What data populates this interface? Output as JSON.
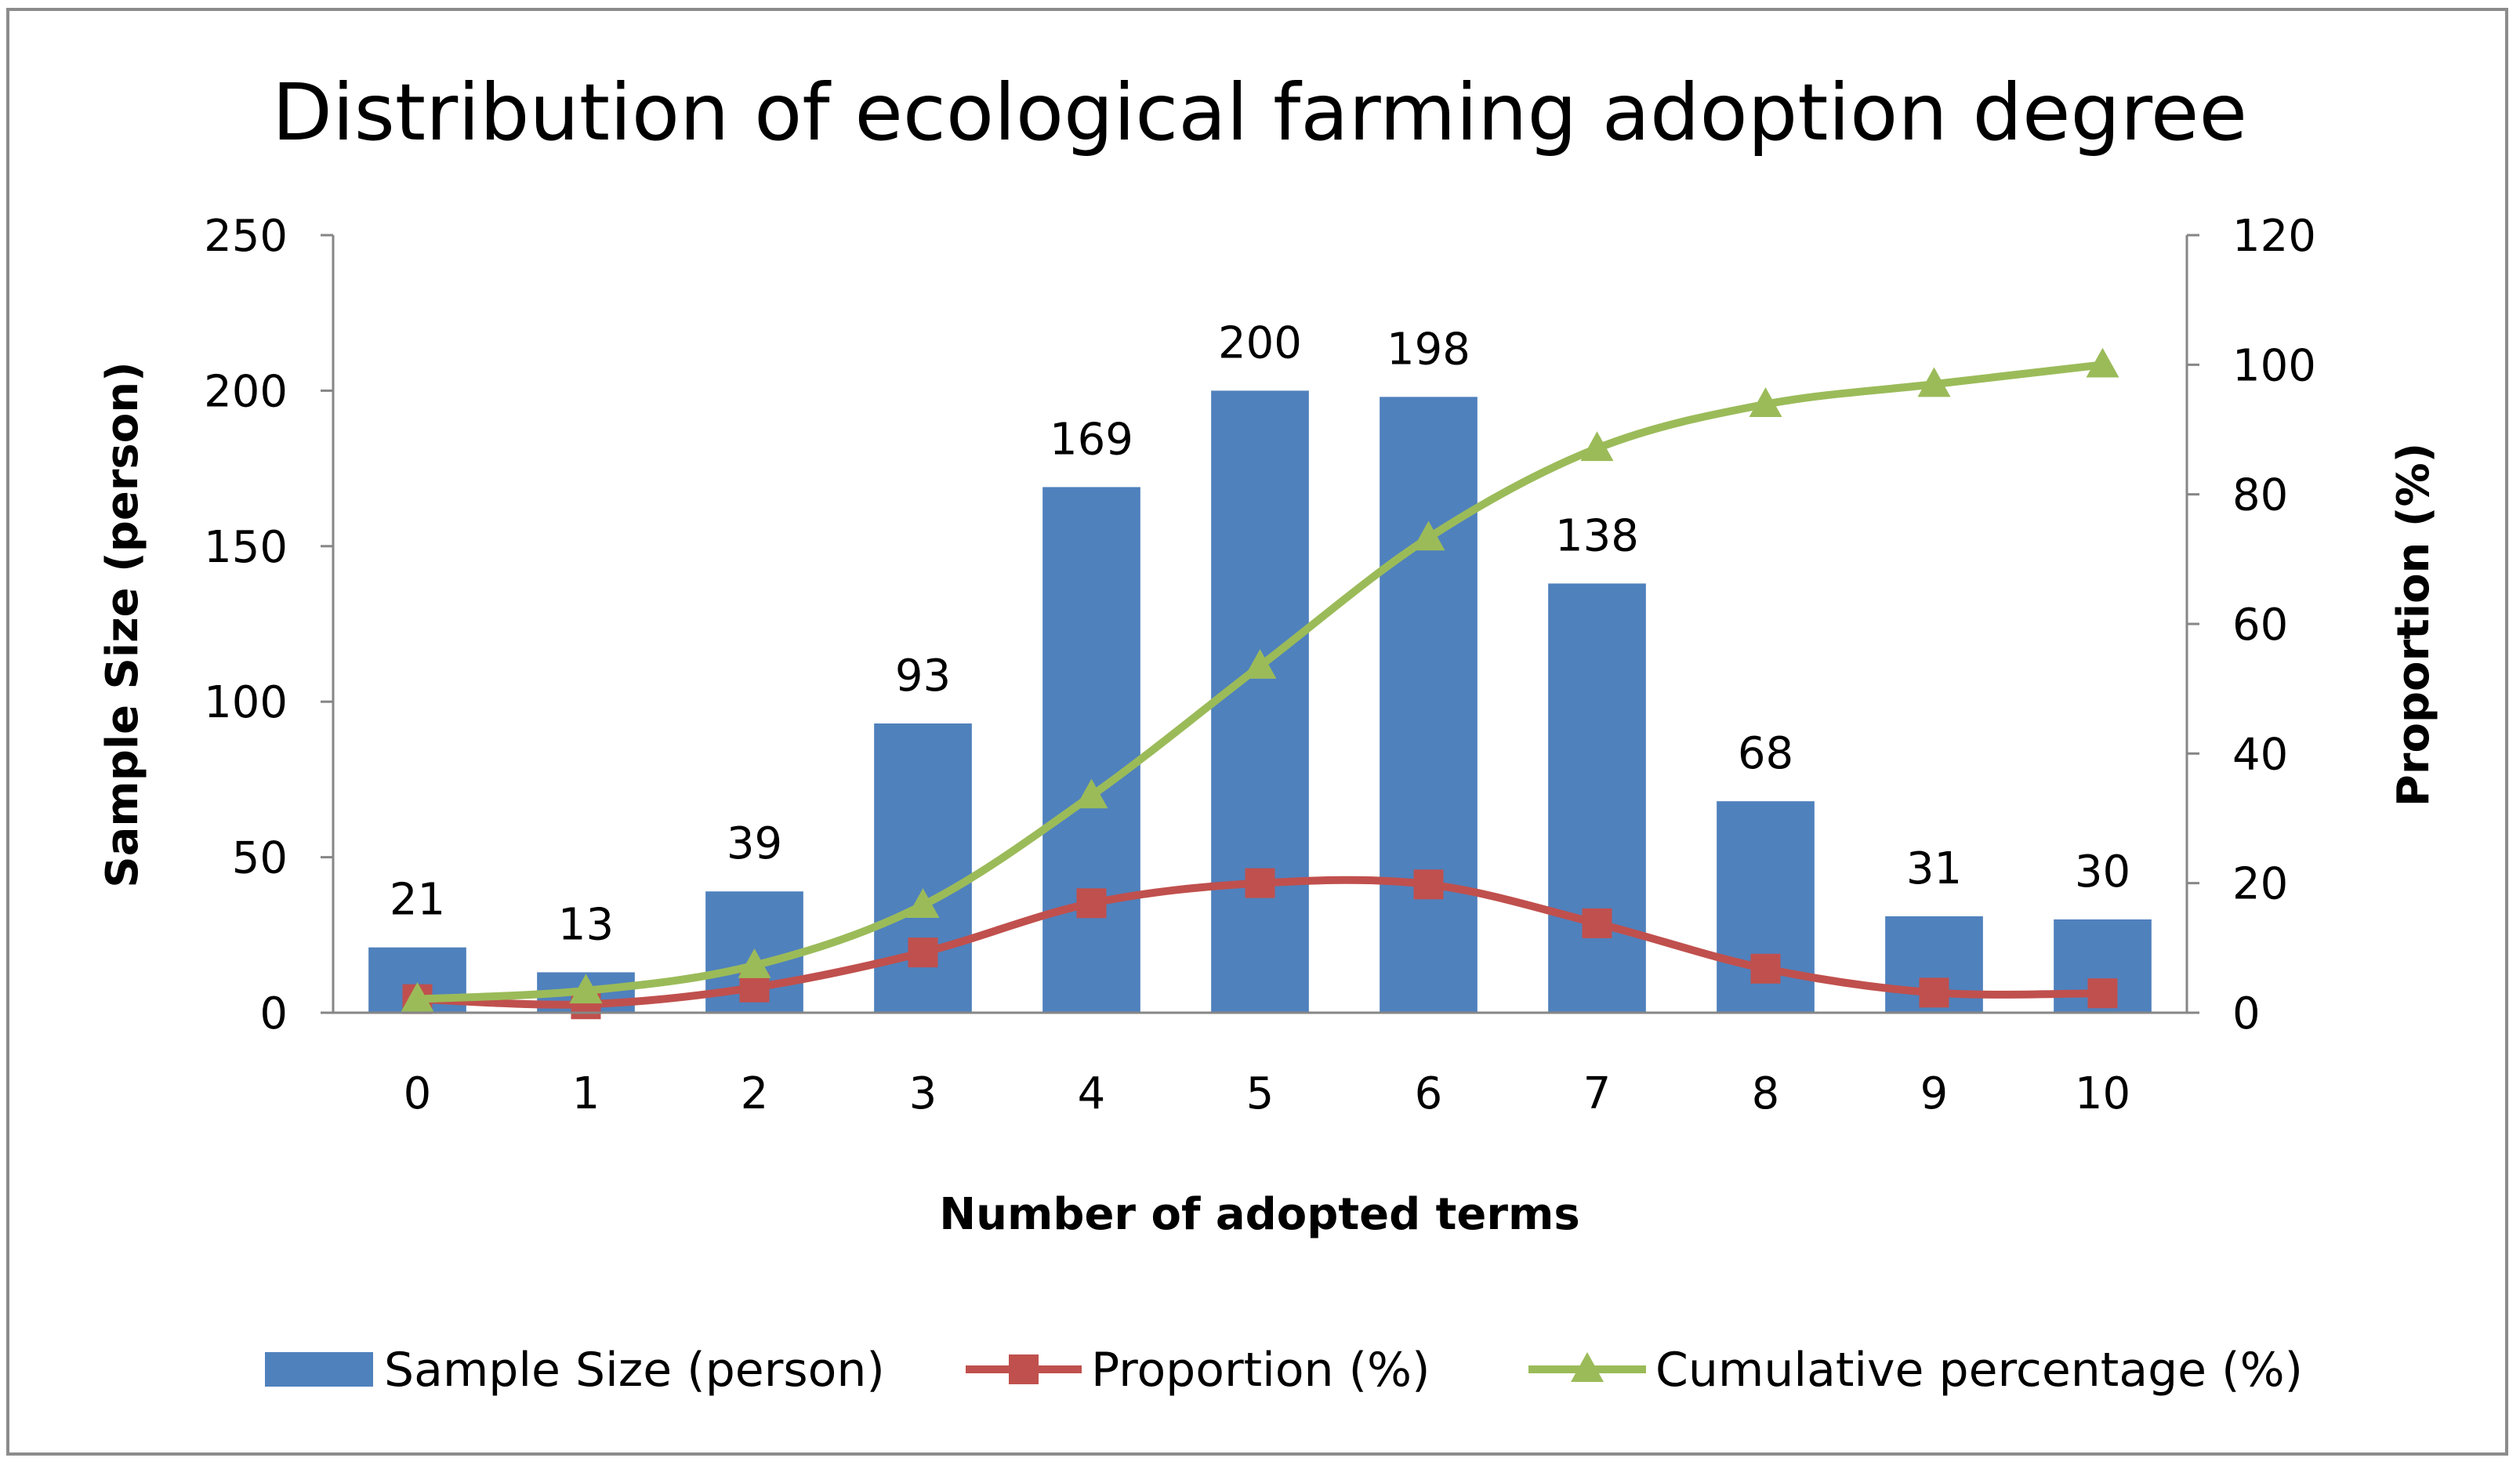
{
  "chart_data": {
    "type": "bar",
    "title": "Distribution of ecological farming adoption degree",
    "xlabel": "Number of adopted terms",
    "ylabel": "Sample Size (person)",
    "y2label": "Proportion (%)",
    "categories": [
      "0",
      "1",
      "2",
      "3",
      "4",
      "5",
      "6",
      "7",
      "8",
      "9",
      "10"
    ],
    "ylim": [
      0,
      250
    ],
    "yticks": [
      0,
      50,
      100,
      150,
      200,
      250
    ],
    "y2lim": [
      0,
      120
    ],
    "y2ticks": [
      0,
      20,
      40,
      60,
      80,
      100,
      120
    ],
    "legend_position": "bottom",
    "series": [
      {
        "name": "Sample Size (person)",
        "type": "bar",
        "axis": "left",
        "color": "#4F81BD",
        "values": [
          21,
          13,
          39,
          93,
          169,
          200,
          198,
          138,
          68,
          31,
          30
        ],
        "labels": [
          "21",
          "13",
          "39",
          "93",
          "169",
          "200",
          "198",
          "138",
          "68",
          "31",
          "30"
        ]
      },
      {
        "name": "Proportion (%)",
        "type": "line",
        "axis": "right",
        "marker": "square",
        "color": "#C0504D",
        "values": [
          2.1,
          1.3,
          3.9,
          9.3,
          16.9,
          20.0,
          19.8,
          13.8,
          6.8,
          3.1,
          3.0
        ]
      },
      {
        "name": "Cumulative percentage (%)",
        "type": "line",
        "axis": "right",
        "marker": "triangle",
        "color": "#9BBB59",
        "values": [
          2.1,
          3.4,
          7.3,
          16.6,
          33.5,
          53.5,
          73.3,
          87.1,
          93.9,
          97.0,
          100.0
        ]
      }
    ]
  }
}
